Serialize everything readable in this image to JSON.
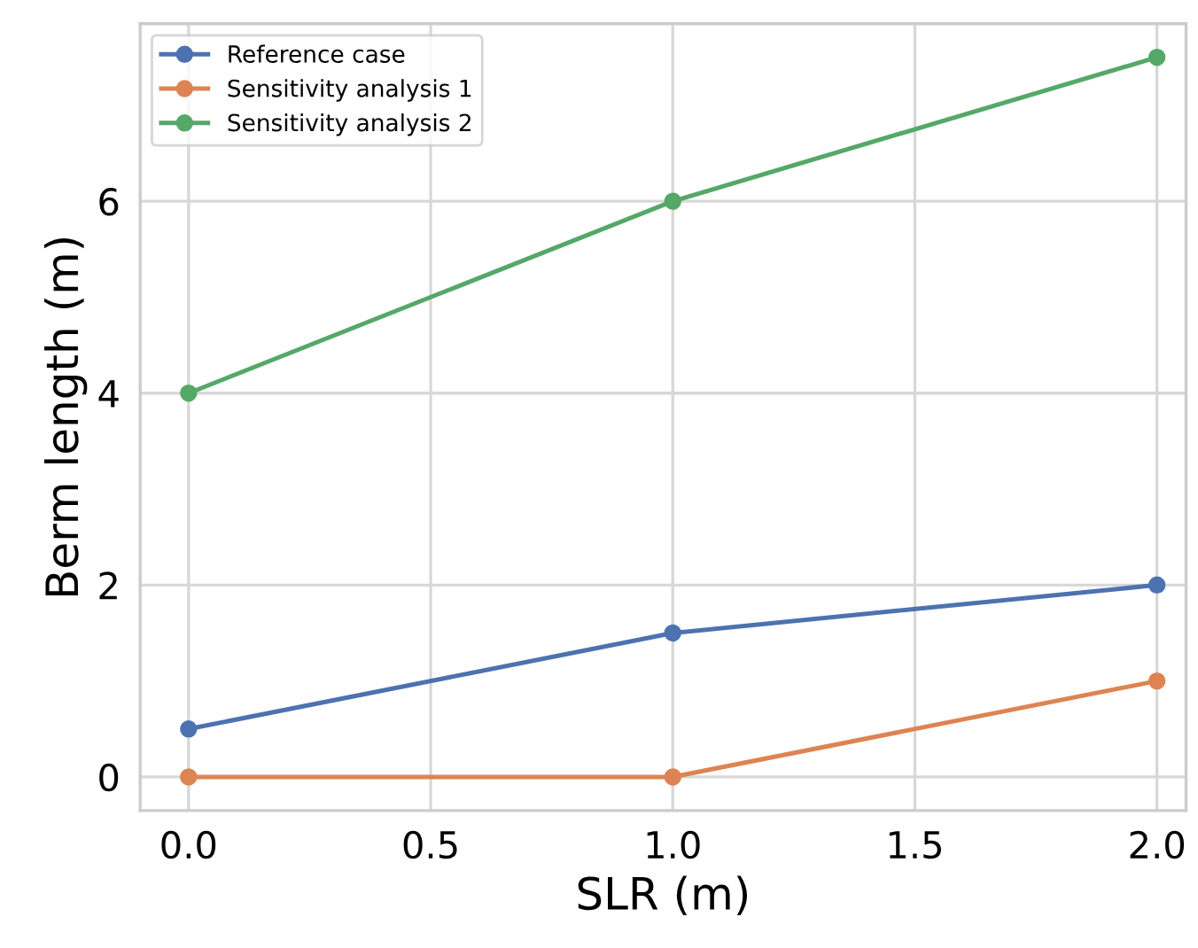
{
  "chart_data": {
    "type": "line",
    "xlabel": "SLR (m)",
    "ylabel": "Berm length (m)",
    "x": [
      0.0,
      1.0,
      2.0
    ],
    "series": [
      {
        "name": "Reference case",
        "color": "#4c72b0",
        "values": [
          0.5,
          1.5,
          2.0
        ]
      },
      {
        "name": "Sensitivity analysis 1",
        "color": "#dd8452",
        "values": [
          0,
          0,
          1.0
        ]
      },
      {
        "name": "Sensitivity analysis 2",
        "color": "#55a868",
        "values": [
          4.0,
          6.0,
          7.5
        ]
      }
    ],
    "xlim": [
      -0.1,
      2.06
    ],
    "ylim": [
      -0.35,
      7.85
    ],
    "xticks": [
      {
        "value": 0,
        "label": "0.0"
      },
      {
        "value": 0.5,
        "label": "0.5"
      },
      {
        "value": 1,
        "label": "1.0"
      },
      {
        "value": 1.5,
        "label": "1.5"
      },
      {
        "value": 2,
        "label": "2.0"
      }
    ],
    "yticks": [
      0,
      2,
      4,
      6
    ],
    "grid": true,
    "legend": "top left",
    "marker": "circle",
    "line_style": "solid"
  }
}
